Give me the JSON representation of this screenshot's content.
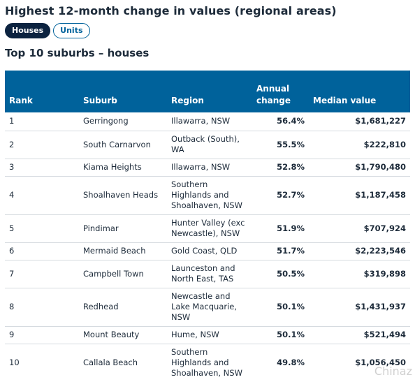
{
  "page_title": "Highest 12-month change in values (regional areas)",
  "toggle": {
    "houses": "Houses",
    "units": "Units"
  },
  "section_title": "Top 10 suburbs – houses",
  "table": {
    "headers": {
      "rank": "Rank",
      "suburb": "Suburb",
      "region": "Region",
      "change": "Annual change",
      "median": "Median value"
    },
    "rows": [
      {
        "rank": "1",
        "suburb": "Gerringong",
        "region": "Illawarra, NSW",
        "change": "56.4%",
        "median": "$1,681,227"
      },
      {
        "rank": "2",
        "suburb": "South Carnarvon",
        "region": "Outback (South), WA",
        "change": "55.5%",
        "median": "$222,810"
      },
      {
        "rank": "3",
        "suburb": "Kiama Heights",
        "region": "Illawarra, NSW",
        "change": "52.8%",
        "median": "$1,790,480"
      },
      {
        "rank": "4",
        "suburb": "Shoalhaven Heads",
        "region": "Southern Highlands and Shoalhaven, NSW",
        "change": "52.7%",
        "median": "$1,187,458"
      },
      {
        "rank": "5",
        "suburb": "Pindimar",
        "region": "Hunter Valley (exc Newcastle), NSW",
        "change": "51.9%",
        "median": "$707,924"
      },
      {
        "rank": "6",
        "suburb": "Mermaid Beach",
        "region": "Gold Coast, QLD",
        "change": "51.7%",
        "median": "$2,223,546"
      },
      {
        "rank": "7",
        "suburb": "Campbell Town",
        "region": "Launceston and North East, TAS",
        "change": "50.5%",
        "median": "$319,898"
      },
      {
        "rank": "8",
        "suburb": "Redhead",
        "region": "Newcastle and Lake Macquarie, NSW",
        "change": "50.1%",
        "median": "$1,431,937"
      },
      {
        "rank": "9",
        "suburb": "Mount Beauty",
        "region": "Hume, NSW",
        "change": "50.1%",
        "median": "$521,494"
      },
      {
        "rank": "10",
        "suburb": "Callala Beach",
        "region": "Southern Highlands and Shoalhaven, NSW",
        "change": "49.8%",
        "median": "$1,056,450"
      }
    ]
  },
  "watermark": "Chinaz"
}
